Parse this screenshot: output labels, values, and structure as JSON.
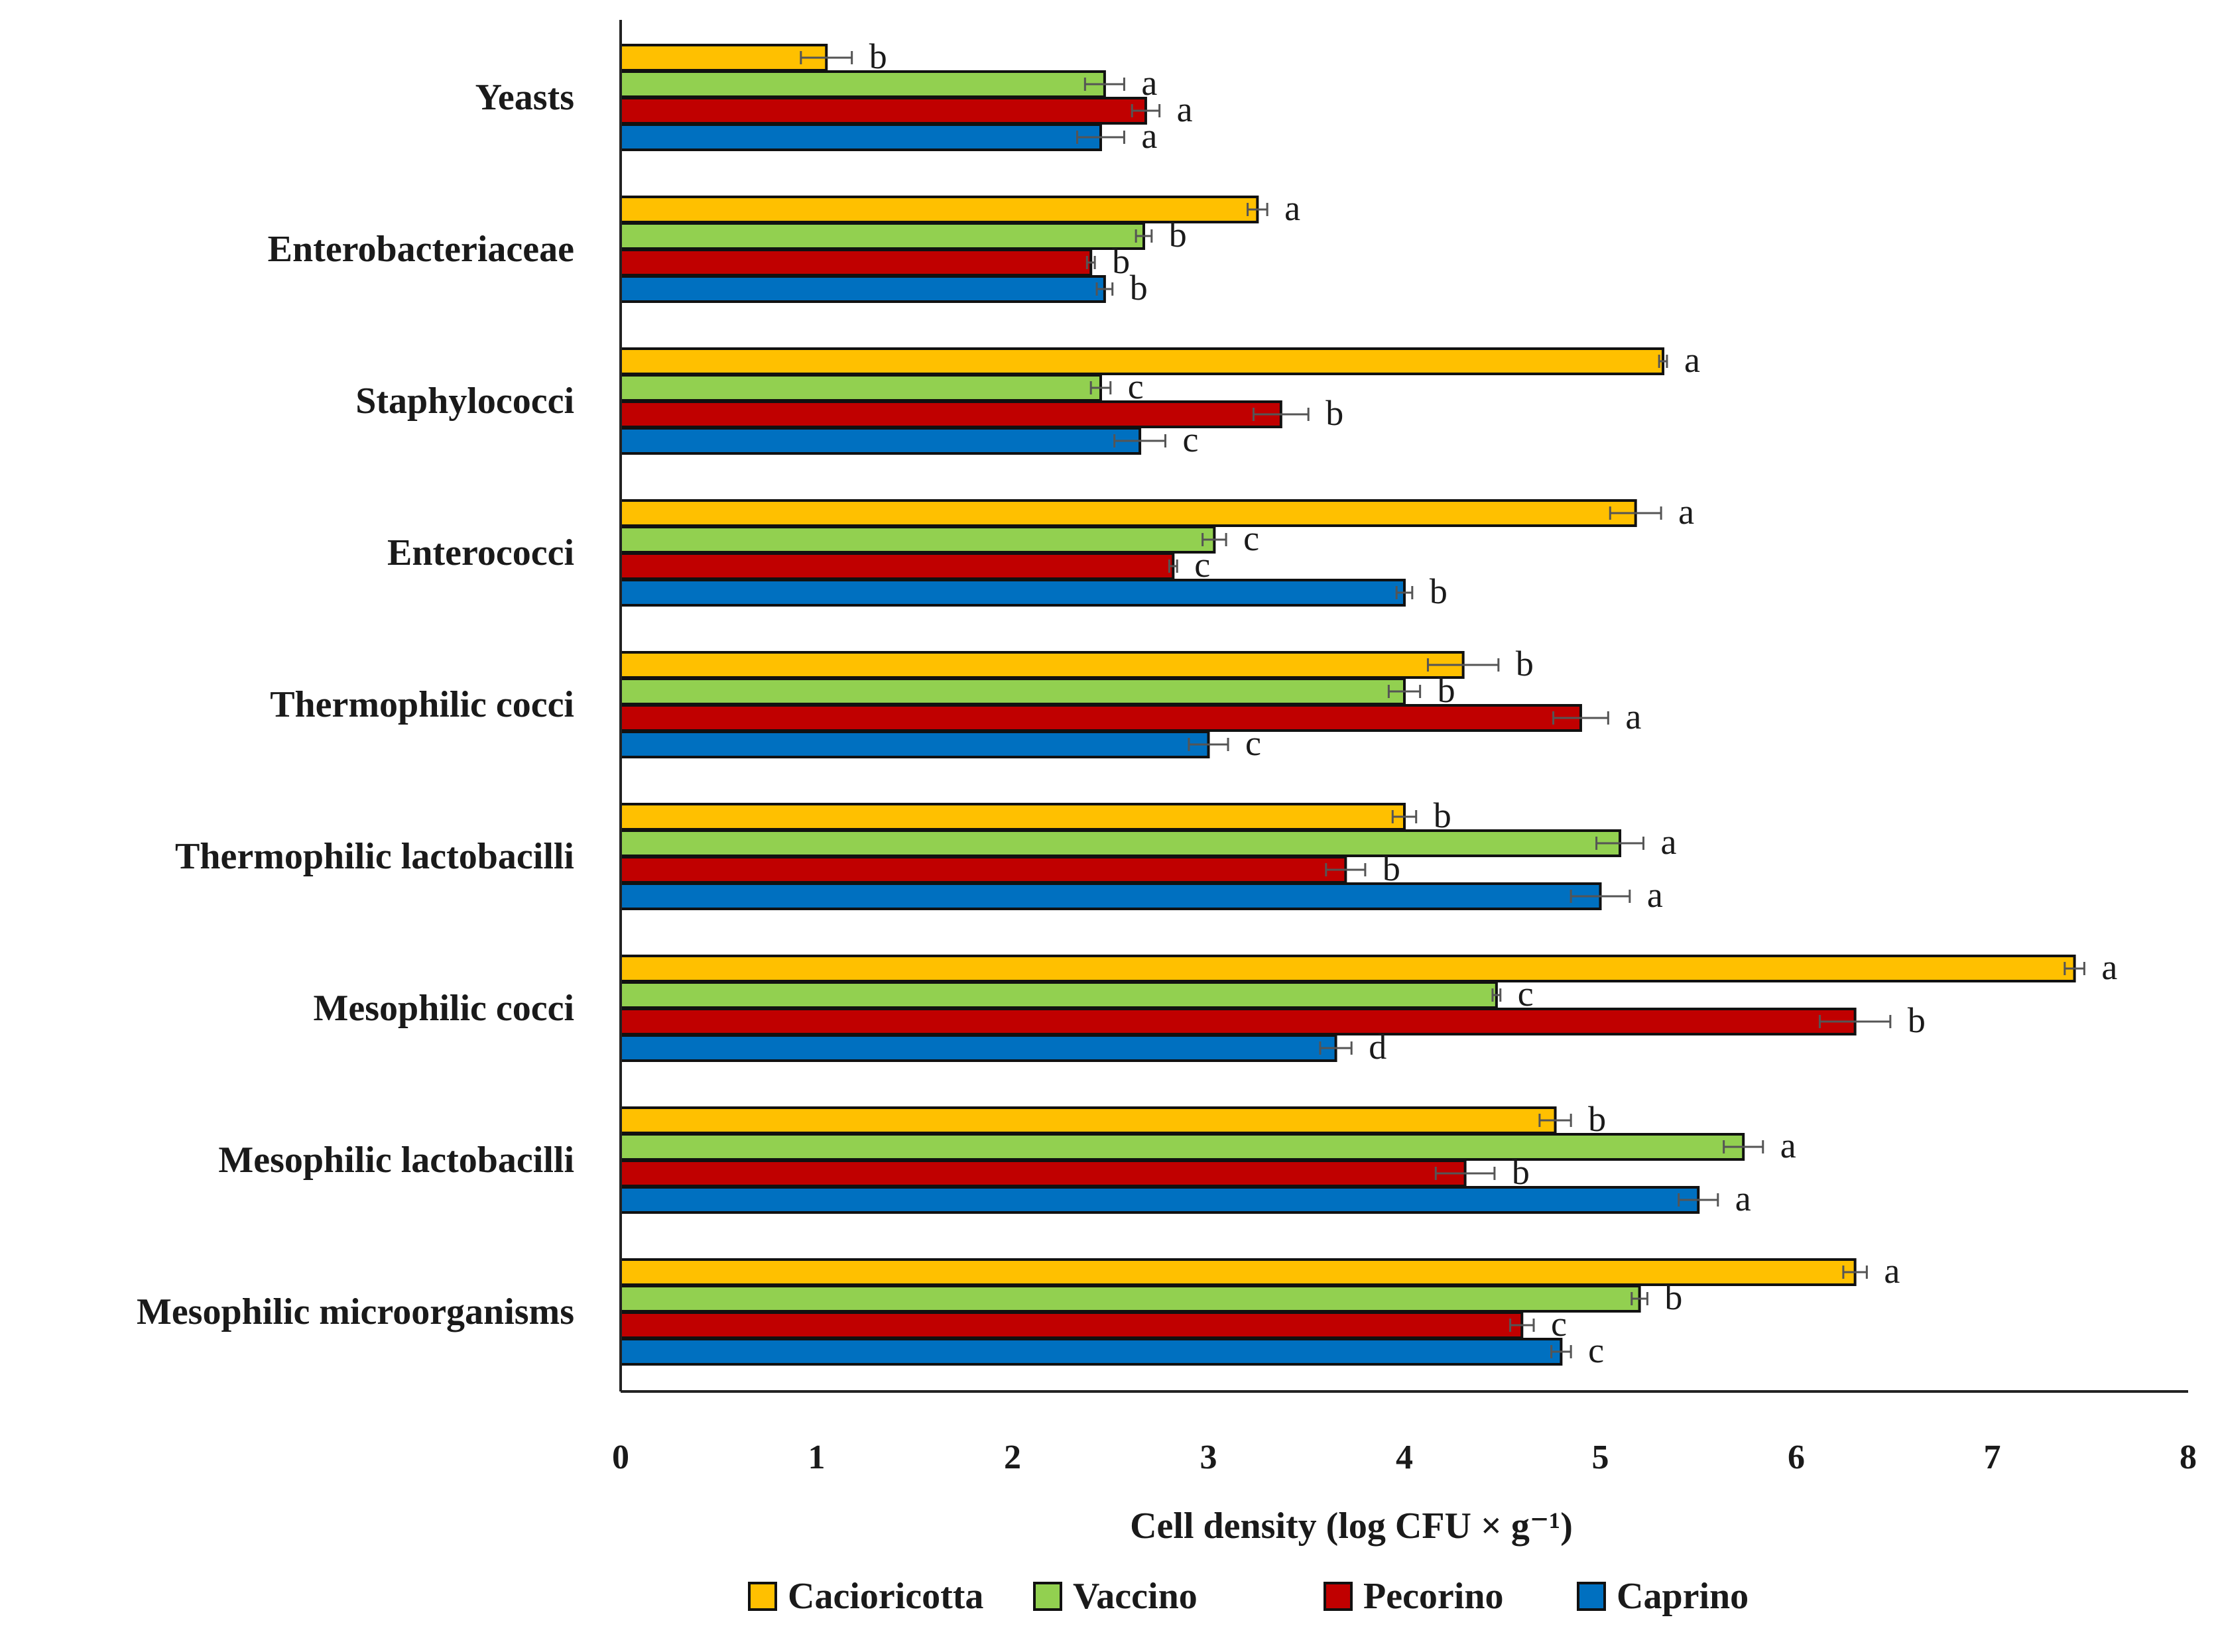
{
  "chart_data": {
    "type": "bar",
    "orientation": "horizontal",
    "title": "",
    "xlabel": "Cell density (log CFU × g⁻¹)",
    "ylabel": "",
    "xlim": [
      0,
      8
    ],
    "xticks": [
      "0",
      "1",
      "2",
      "3",
      "4",
      "5",
      "6",
      "7",
      "8"
    ],
    "grid": false,
    "legend_position": "bottom",
    "categories": [
      "Yeasts",
      "Enterobacteriaceae",
      "Staphylococci",
      "Enterococci",
      "Thermophilic cocci",
      "Thermophilic lactobacilli",
      "Mesophilic cocci",
      "Mesophilic lactobacilli",
      "Mesophilic microorganisms"
    ],
    "series": [
      {
        "name": "Cacioricotta",
        "color": "#FFC000",
        "values": [
          1.05,
          3.25,
          5.32,
          5.18,
          4.3,
          4.0,
          7.42,
          4.77,
          6.3
        ],
        "errors": [
          0.13,
          0.05,
          0.02,
          0.13,
          0.18,
          0.06,
          0.05,
          0.08,
          0.06
        ],
        "letters": [
          "b",
          "a",
          "a",
          "a",
          "b",
          "b",
          "a",
          "b",
          "a"
        ]
      },
      {
        "name": "Vaccino",
        "color": "#92D050",
        "values": [
          2.47,
          2.67,
          2.45,
          3.03,
          4.0,
          5.1,
          4.47,
          5.73,
          5.2
        ],
        "errors": [
          0.1,
          0.04,
          0.05,
          0.06,
          0.08,
          0.12,
          0.02,
          0.1,
          0.04
        ],
        "letters": [
          "a",
          "b",
          "c",
          "c",
          "b",
          "a",
          "c",
          "a",
          "b"
        ]
      },
      {
        "name": "Pecorino",
        "color": "#C00000",
        "values": [
          2.68,
          2.4,
          3.37,
          2.82,
          4.9,
          3.7,
          6.3,
          4.31,
          4.6
        ],
        "errors": [
          0.07,
          0.02,
          0.14,
          0.02,
          0.14,
          0.1,
          0.18,
          0.15,
          0.06
        ],
        "letters": [
          "a",
          "b",
          "b",
          "c",
          "a",
          "b",
          "b",
          "b",
          "c"
        ]
      },
      {
        "name": "Caprino",
        "color": "#0070C0",
        "values": [
          2.45,
          2.47,
          2.65,
          4.0,
          3.0,
          5.0,
          3.65,
          5.5,
          4.8
        ],
        "errors": [
          0.12,
          0.04,
          0.13,
          0.04,
          0.1,
          0.15,
          0.08,
          0.1,
          0.05
        ],
        "letters": [
          "a",
          "b",
          "c",
          "b",
          "c",
          "a",
          "d",
          "a",
          "c"
        ]
      }
    ]
  }
}
